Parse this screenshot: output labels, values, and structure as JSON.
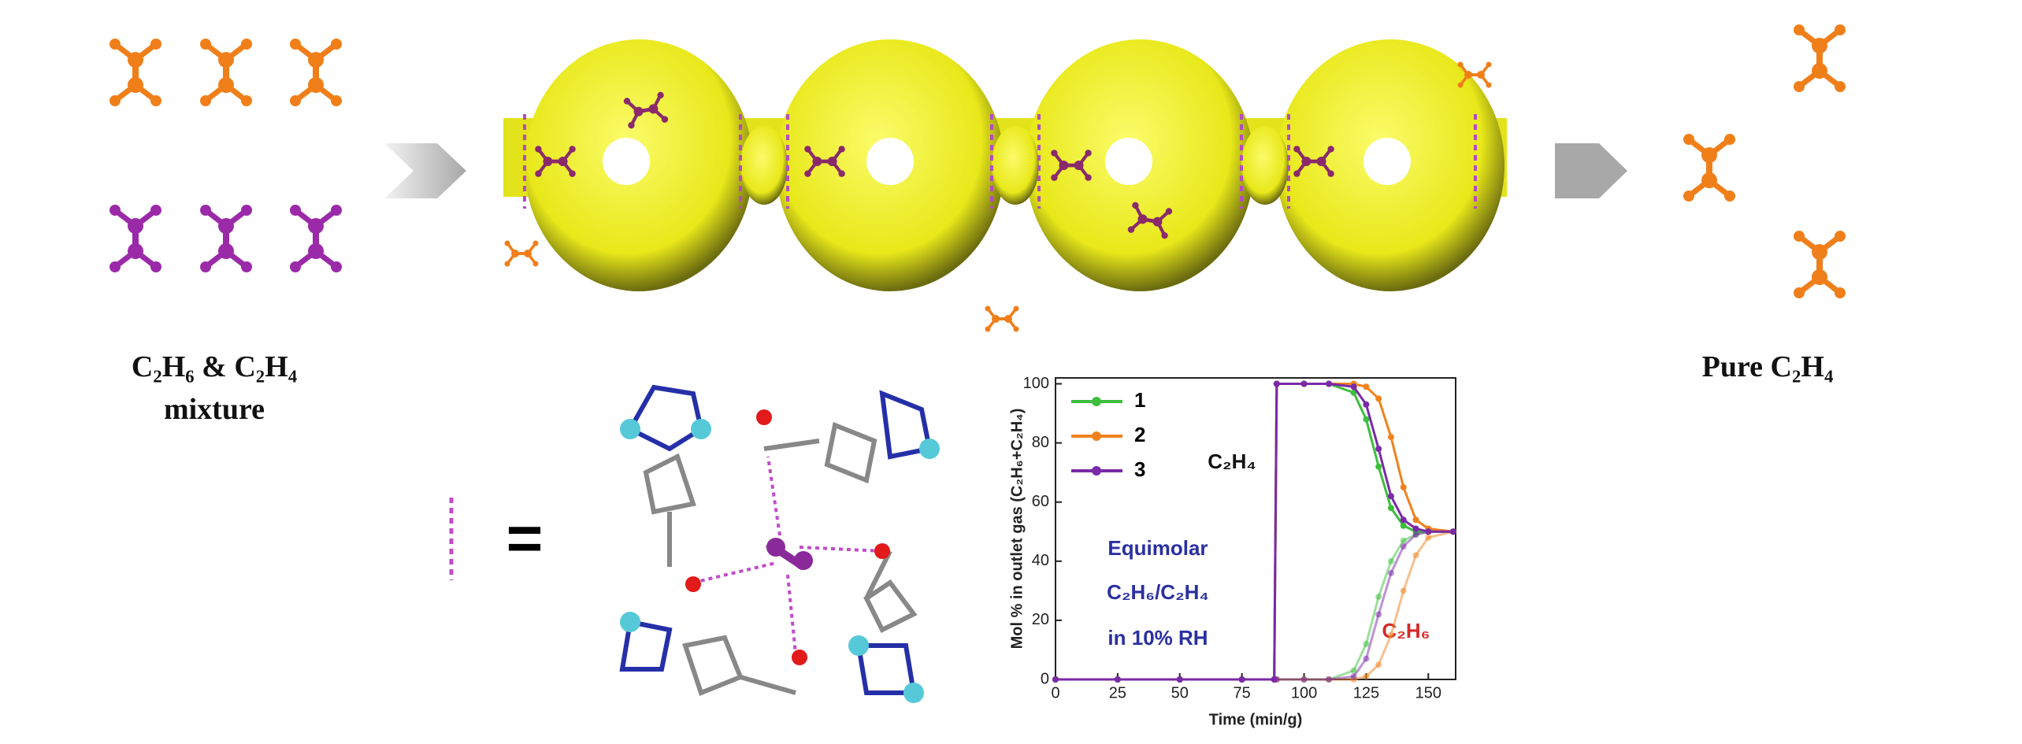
{
  "labels": {
    "feed": "C₂H₆ & C₂H₄",
    "feed_sub": "mixture",
    "product": "Pure C₂H₄",
    "equals": "="
  },
  "chart_data": {
    "type": "line",
    "y_label": "Mol % in outlet gas (C₂H₆+C₂H₄)",
    "x_label": "Time (min/g)",
    "annotations": [
      "C₂H₄",
      "Equimolar",
      "C₂H₆/C₂H₄",
      "in 10% RH",
      "C₂H₆"
    ],
    "x": [
      0,
      25,
      50,
      75,
      88,
      89,
      100,
      110,
      120,
      125,
      130,
      135,
      140,
      145,
      150,
      160
    ],
    "series": [
      {
        "name": "1",
        "color": "#3cbf3c",
        "values": [
          0,
          0,
          0,
          0,
          0,
          100,
          100,
          100,
          97,
          88,
          72,
          58,
          52,
          50,
          50,
          50
        ],
        "values_c2h6": [
          0,
          0,
          0,
          0,
          0,
          0,
          0,
          0,
          3,
          12,
          28,
          40,
          47,
          49,
          50,
          50
        ]
      },
      {
        "name": "2",
        "color": "#f0821e",
        "values": [
          0,
          0,
          0,
          0,
          0,
          100,
          100,
          100,
          100,
          99,
          95,
          82,
          65,
          54,
          51,
          50
        ],
        "values_c2h6": [
          0,
          0,
          0,
          0,
          0,
          0,
          0,
          0,
          0,
          1,
          5,
          15,
          30,
          42,
          48,
          50
        ]
      },
      {
        "name": "3",
        "color": "#7a2aa8",
        "values": [
          0,
          0,
          0,
          0,
          0,
          100,
          100,
          100,
          99,
          93,
          78,
          62,
          54,
          51,
          50,
          50
        ],
        "values_c2h6": [
          0,
          0,
          0,
          0,
          0,
          0,
          0,
          0,
          1,
          7,
          22,
          36,
          45,
          49,
          50,
          50
        ]
      }
    ],
    "xlim": [
      0,
      161
    ],
    "ylim": [
      0,
      102
    ],
    "xticks": [
      0,
      25,
      50,
      75,
      100,
      125,
      150
    ],
    "yticks": [
      0,
      20,
      40,
      60,
      80,
      100
    ]
  }
}
